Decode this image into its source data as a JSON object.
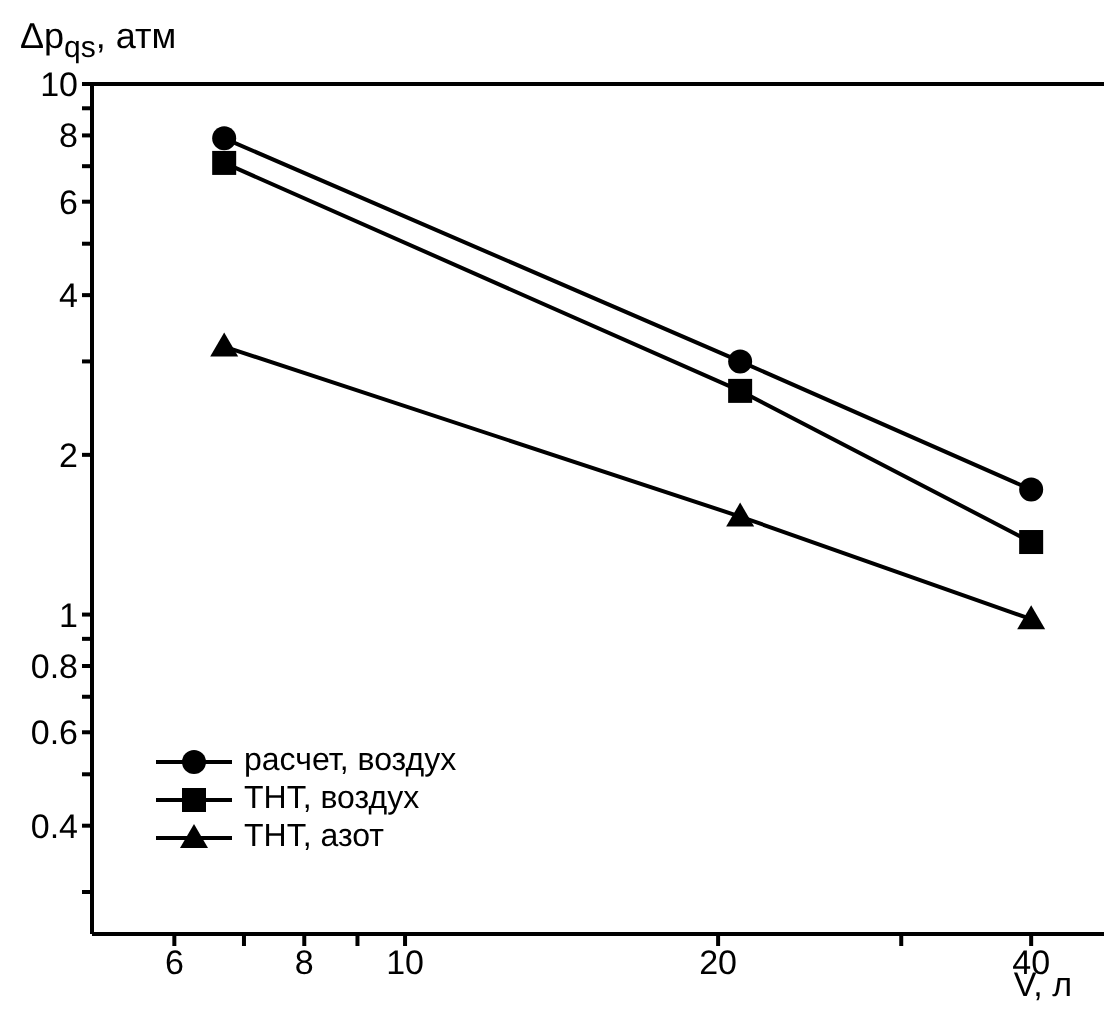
{
  "chart_data": {
    "type": "line",
    "xlabel": "V, л",
    "ylabel": "Δp$_{qs}$, атм",
    "log": "xy",
    "xlim": [
      5,
      47
    ],
    "xticks": [
      6,
      {
        "value": 7,
        "label": null
      },
      8,
      {
        "value": 9,
        "label": null
      },
      10,
      20,
      {
        "value": 30,
        "label": null
      },
      40
    ],
    "ylim": [
      0.25,
      10
    ],
    "yticks": [
      {
        "value": 0.3,
        "label": null
      },
      0.4,
      {
        "value": 0.5,
        "label": null
      },
      0.6,
      {
        "value": 0.7,
        "label": null
      },
      0.8,
      {
        "value": 0.9,
        "label": null
      },
      1,
      2,
      {
        "value": 3,
        "label": null
      },
      4,
      {
        "value": 5,
        "label": null
      },
      6,
      {
        "value": 7,
        "label": null
      },
      8,
      {
        "value": 9,
        "label": null
      },
      10
    ],
    "grid": false,
    "legend": "bottom left",
    "line_style": "solid",
    "x": [
      6.7,
      21,
      40
    ],
    "series": [
      {
        "name": "расчет, воздух",
        "color": "#000000",
        "marker": "circle",
        "values": [
          7.9,
          3.0,
          1.72
        ]
      },
      {
        "name": "ТНТ, воздух",
        "color": "#000000",
        "marker": "square",
        "values": [
          7.1,
          2.64,
          1.37
        ]
      },
      {
        "name": "ТНТ, азот",
        "color": "#000000",
        "marker": "triangle",
        "values": [
          3.2,
          1.53,
          0.98
        ]
      }
    ]
  }
}
